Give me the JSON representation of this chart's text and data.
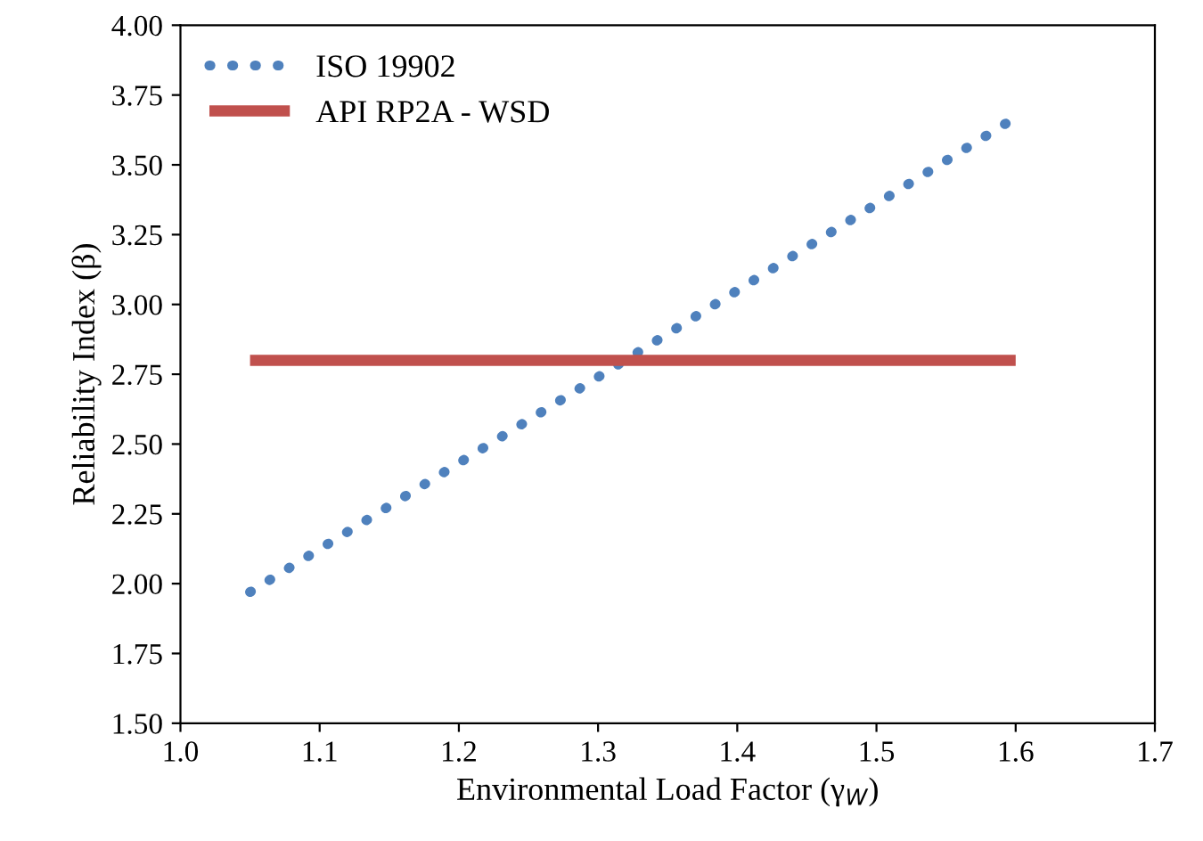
{
  "chart_data": {
    "type": "line",
    "xlabel": "Environmental Load Factor (γ$_{W}$)",
    "ylabel": "Reliability Index (β)",
    "series": [
      {
        "name": "ISO 19902",
        "color": "#4f81bd",
        "line_style": "dotted",
        "x": [
          1.05,
          1.3,
          1.6
        ],
        "values": [
          1.97,
          2.74,
          3.67
        ]
      },
      {
        "name": "API RP2A - WSD",
        "color": "#c0504d",
        "line_style": "solid",
        "x": [
          1.05,
          1.6
        ],
        "values": [
          2.8,
          2.8
        ]
      }
    ],
    "xlim": [
      1.0,
      1.7
    ],
    "ylim": [
      1.5,
      4.0
    ],
    "xticks": [
      {
        "value": 1.0,
        "label": "1.0"
      },
      1.1,
      1.2,
      1.3,
      1.4,
      1.5,
      1.6,
      1.7
    ],
    "yticks": [
      {
        "value": 1.5,
        "label": "1.50"
      },
      {
        "value": 1.75,
        "label": "1.75"
      },
      {
        "value": 2.0,
        "label": "2.00"
      },
      {
        "value": 2.25,
        "label": "2.25"
      },
      {
        "value": 2.5,
        "label": "2.50"
      },
      {
        "value": 2.75,
        "label": "2.75"
      },
      {
        "value": 3.0,
        "label": "3.00"
      },
      {
        "value": 3.25,
        "label": "3.25"
      },
      {
        "value": 3.5,
        "label": "3.50"
      },
      {
        "value": 3.75,
        "label": "3.75"
      },
      {
        "value": 4.0,
        "label": "4.00"
      }
    ],
    "grid": false,
    "legend": "top left",
    "marker": "none"
  }
}
